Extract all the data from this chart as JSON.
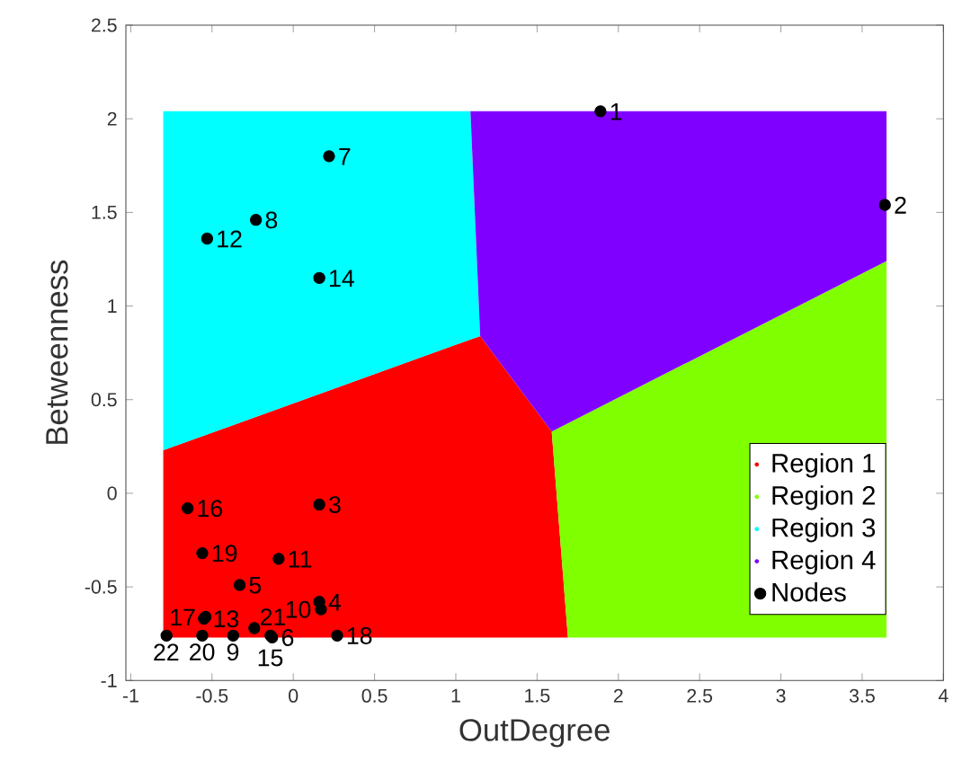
{
  "chart_data": {
    "type": "scatter",
    "xlabel": "OutDegree",
    "ylabel": "Betweenness",
    "xlim": [
      -1.03,
      4
    ],
    "ylim": [
      -1,
      2.5
    ],
    "xticks": [
      -1,
      -0.5,
      0,
      0.5,
      1,
      1.5,
      2,
      2.5,
      3,
      3.5,
      4
    ],
    "yticks": [
      -1,
      -0.5,
      0,
      0.5,
      1,
      1.5,
      2,
      2.5
    ],
    "legend": "bottom right",
    "series": [
      {
        "name": "Region 1",
        "type": "area",
        "color": "#ff0000",
        "x": [
          -0.8,
          -0.8,
          1.15,
          1.59,
          1.69
        ],
        "values": [
          -0.77,
          0.23,
          0.84,
          0.33,
          -0.77
        ]
      },
      {
        "name": "Region 2",
        "type": "area",
        "color": "#80ff00",
        "x": [
          1.69,
          1.59,
          3.65,
          3.65
        ],
        "values": [
          -0.77,
          0.33,
          1.24,
          -0.77
        ]
      },
      {
        "name": "Region 3",
        "type": "area",
        "color": "#00ffff",
        "x": [
          -0.8,
          -0.8,
          1.09,
          1.15
        ],
        "values": [
          0.23,
          2.04,
          2.04,
          0.84
        ]
      },
      {
        "name": "Region 4",
        "type": "area",
        "color": "#8000ff",
        "x": [
          1.09,
          3.65,
          3.65,
          1.59,
          1.15
        ],
        "values": [
          2.04,
          2.04,
          1.24,
          0.33,
          0.84
        ]
      },
      {
        "name": "Nodes",
        "color": "#000000",
        "marker": "circle",
        "x": [
          1.89,
          3.64,
          0.16,
          0.16,
          -0.33,
          -0.13,
          0.22,
          -0.23,
          -0.37,
          0.17,
          -0.09,
          -0.53,
          -0.55,
          0.16,
          -0.14,
          -0.65,
          -0.54,
          0.27,
          -0.56,
          -0.56,
          -0.24,
          -0.78
        ],
        "values": [
          2.04,
          1.54,
          -0.06,
          -0.58,
          -0.49,
          -0.77,
          1.8,
          1.46,
          -0.76,
          -0.62,
          -0.35,
          1.36,
          -0.67,
          1.15,
          -0.76,
          -0.08,
          -0.66,
          -0.76,
          -0.32,
          -0.76,
          -0.72,
          -0.76
        ]
      }
    ],
    "annotations": [
      {
        "text": "1",
        "x": 1.89,
        "y": 2.04
      },
      {
        "text": "2",
        "x": 3.64,
        "y": 1.54
      },
      {
        "text": "3",
        "x": 0.16,
        "y": -0.06
      },
      {
        "text": "4",
        "x": 0.16,
        "y": -0.58
      },
      {
        "text": "5",
        "x": -0.33,
        "y": -0.49
      },
      {
        "text": "6",
        "x": -0.13,
        "y": -0.77
      },
      {
        "text": "7",
        "x": 0.22,
        "y": 1.8
      },
      {
        "text": "8",
        "x": -0.23,
        "y": 1.46
      },
      {
        "text": "9",
        "x": -0.37,
        "y": -0.76
      },
      {
        "text": "10",
        "x": 0.17,
        "y": -0.62
      },
      {
        "text": "11",
        "x": -0.09,
        "y": -0.35
      },
      {
        "text": "12",
        "x": -0.53,
        "y": 1.36
      },
      {
        "text": "13",
        "x": -0.55,
        "y": -0.67
      },
      {
        "text": "14",
        "x": 0.16,
        "y": 1.15
      },
      {
        "text": "15",
        "x": -0.14,
        "y": -0.76
      },
      {
        "text": "16",
        "x": -0.65,
        "y": -0.08
      },
      {
        "text": "17",
        "x": -0.54,
        "y": -0.66
      },
      {
        "text": "18",
        "x": 0.27,
        "y": -0.76
      },
      {
        "text": "19",
        "x": -0.56,
        "y": -0.32
      },
      {
        "text": "20",
        "x": -0.56,
        "y": -0.76
      },
      {
        "text": "21",
        "x": -0.24,
        "y": -0.72
      },
      {
        "text": "22",
        "x": -0.78,
        "y": -0.76
      }
    ]
  }
}
